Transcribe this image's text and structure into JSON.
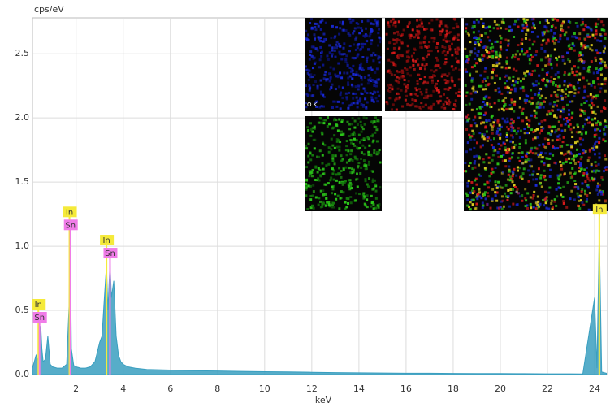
{
  "chart_data": {
    "type": "spectrum",
    "y_label": "cps/eV",
    "x_label": "keV",
    "xlim": [
      0.15,
      24.55
    ],
    "ylim": [
      0,
      2.78
    ],
    "xticks": [
      2,
      4,
      6,
      8,
      10,
      12,
      14,
      16,
      18,
      20,
      22,
      24
    ],
    "yticks": [
      {
        "value": 0,
        "label": "0.0"
      },
      0.5,
      {
        "value": 1,
        "label": "1.0"
      },
      1.5,
      {
        "value": 2,
        "label": "2.0"
      },
      2.5
    ],
    "grid": true,
    "color": "#3a9fc0",
    "x": [
      0.15,
      0.3,
      0.4,
      0.5,
      0.55,
      0.6,
      0.7,
      0.8,
      0.9,
      1.0,
      1.2,
      1.4,
      1.6,
      1.7,
      1.75,
      1.8,
      1.9,
      2.0,
      2.2,
      2.4,
      2.6,
      2.8,
      3.0,
      3.1,
      3.2,
      3.29,
      3.35,
      3.44,
      3.5,
      3.6,
      3.7,
      3.8,
      3.9,
      4.0,
      4.2,
      4.5,
      5,
      6,
      7,
      8,
      9,
      10,
      11,
      12,
      13,
      14,
      15,
      16,
      17,
      18,
      19,
      20,
      21,
      22,
      23,
      23.5,
      24.0,
      24.1,
      24.2,
      24.3,
      24.5
    ],
    "values": [
      0.05,
      0.15,
      0.1,
      0.38,
      0.2,
      0.1,
      0.12,
      0.3,
      0.08,
      0.06,
      0.05,
      0.05,
      0.08,
      0.53,
      1.1,
      0.2,
      0.07,
      0.06,
      0.05,
      0.05,
      0.06,
      0.1,
      0.25,
      0.3,
      0.6,
      0.85,
      0.5,
      0.88,
      0.6,
      0.73,
      0.3,
      0.15,
      0.1,
      0.08,
      0.06,
      0.05,
      0.04,
      0.035,
      0.03,
      0.028,
      0.025,
      0.022,
      0.02,
      0.018,
      0.015,
      0.013,
      0.012,
      0.01,
      0.01,
      0.009,
      0.008,
      0.008,
      0.007,
      0.006,
      0.006,
      0.005,
      0.6,
      0.05,
      1.12,
      0.02,
      0.01
    ],
    "markers": [
      {
        "label": "In",
        "x": 0.4,
        "color": "#f5ea3a"
      },
      {
        "label": "Sn",
        "x": 0.45,
        "color": "#f07ce8"
      },
      {
        "label": "In",
        "x": 1.72,
        "color": "#f5ea3a"
      },
      {
        "label": "Sn",
        "x": 1.76,
        "color": "#f07ce8"
      },
      {
        "label": "In",
        "x": 3.29,
        "color": "#f5ea3a"
      },
      {
        "label": "Sn",
        "x": 3.44,
        "color": "#f07ce8"
      },
      {
        "label": "In",
        "x": 24.2,
        "color": "#f5ea3a"
      }
    ],
    "map_labels": [
      "O K"
    ]
  }
}
